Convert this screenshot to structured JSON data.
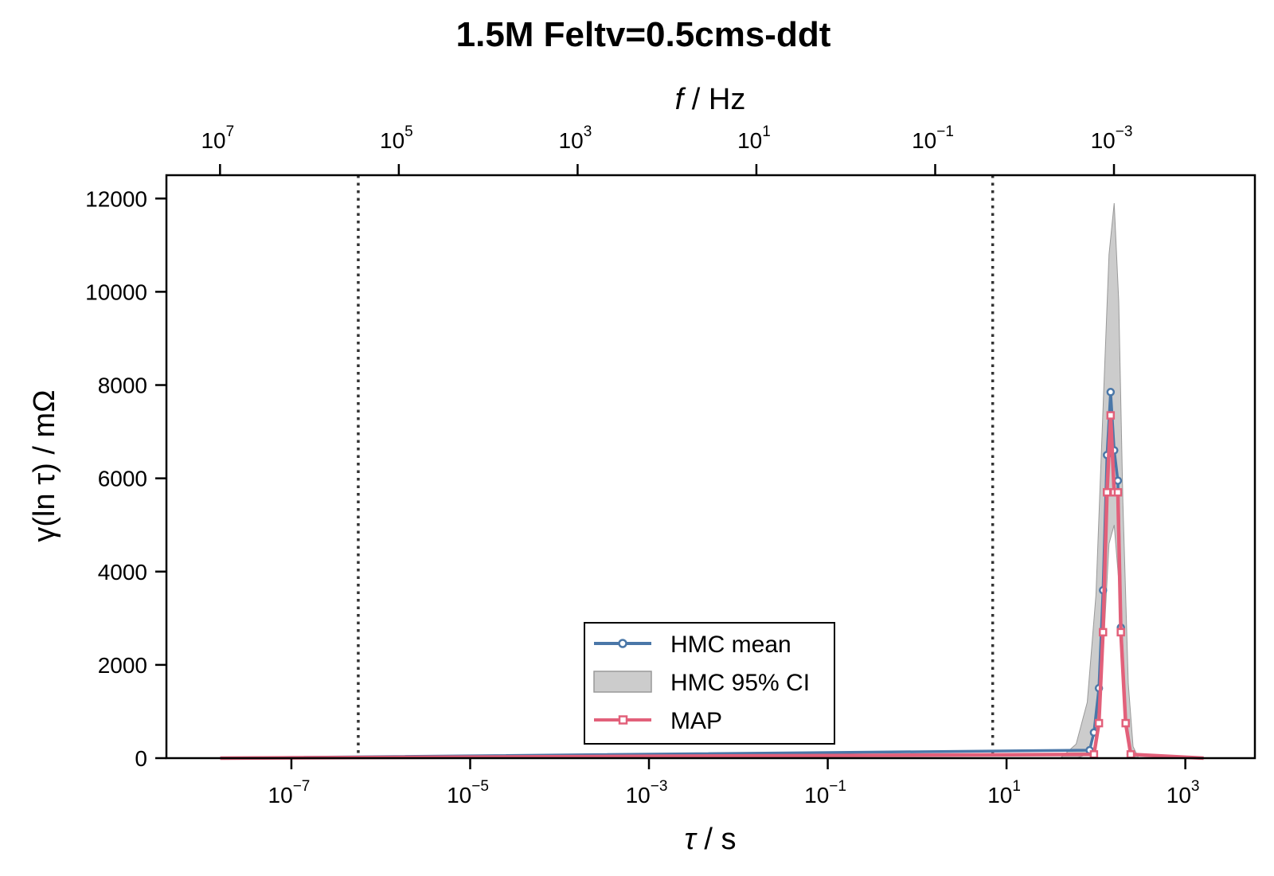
{
  "chart_data": {
    "type": "line",
    "title": "1.5M Feltv=0.5cms-ddt",
    "xlabel_sym": "τ",
    "xlabel_unit": " / s",
    "x2label_sym": "f",
    "x2label_unit": " / Hz",
    "ylabel": "γ(ln τ) / mΩ",
    "xscale": "log",
    "xlim": [
      4e-09,
      6000
    ],
    "ylim": [
      0,
      12500
    ],
    "x_ticks": [
      {
        "base": "10",
        "exp": "−7",
        "value": 1e-07
      },
      {
        "base": "10",
        "exp": "−5",
        "value": 1e-05
      },
      {
        "base": "10",
        "exp": "−3",
        "value": 0.001
      },
      {
        "base": "10",
        "exp": "−1",
        "value": 0.1
      },
      {
        "base": "10",
        "exp": "1",
        "value": 10
      },
      {
        "base": "10",
        "exp": "3",
        "value": 1000
      }
    ],
    "x2_ticks": [
      {
        "base": "10",
        "exp": "7",
        "value": 10000000.0
      },
      {
        "base": "10",
        "exp": "5",
        "value": 100000.0
      },
      {
        "base": "10",
        "exp": "3",
        "value": 1000.0
      },
      {
        "base": "10",
        "exp": "1",
        "value": 10
      },
      {
        "base": "10",
        "exp": "−1",
        "value": 0.1
      },
      {
        "base": "10",
        "exp": "−3",
        "value": 0.001
      }
    ],
    "y_ticks": [
      {
        "label": "0",
        "value": 0
      },
      {
        "label": "2000",
        "value": 2000
      },
      {
        "label": "4000",
        "value": 4000
      },
      {
        "label": "6000",
        "value": 6000
      },
      {
        "label": "8000",
        "value": 8000
      },
      {
        "label": "10000",
        "value": 10000
      },
      {
        "label": "12000",
        "value": 12000
      }
    ],
    "vlines": [
      5.6e-07,
      7.0
    ],
    "line_range": [
      1.6e-08,
      1600
    ],
    "ci_band": {
      "name": "HMC 95% CI",
      "color": "#b0b0b0",
      "x": [
        40,
        60,
        80,
        100,
        120,
        140,
        160,
        180,
        200,
        230,
        260,
        300
      ],
      "lower": [
        0,
        0,
        80,
        600,
        2200,
        4600,
        5000,
        3800,
        1800,
        400,
        30,
        0
      ],
      "upper": [
        0,
        300,
        1200,
        3500,
        7500,
        10800,
        11900,
        9800,
        5500,
        1600,
        250,
        0
      ]
    },
    "series": [
      {
        "name": "HMC mean",
        "color": "#4a77a8",
        "marker": "circle",
        "x": [
          85,
          95,
          108,
          120,
          133,
          146,
          160,
          176,
          190,
          215,
          245
        ],
        "y": [
          170,
          550,
          1500,
          3600,
          6500,
          7850,
          6600,
          5950,
          2800,
          750,
          80
        ]
      },
      {
        "name": "MAP",
        "color": "#e2607a",
        "marker": "square",
        "x": [
          95,
          108,
          120,
          133,
          146,
          160,
          176,
          190,
          215,
          245
        ],
        "y": [
          80,
          750,
          2700,
          5700,
          7350,
          5700,
          5700,
          2700,
          750,
          80
        ]
      }
    ],
    "legend_loc": "lower-center"
  }
}
